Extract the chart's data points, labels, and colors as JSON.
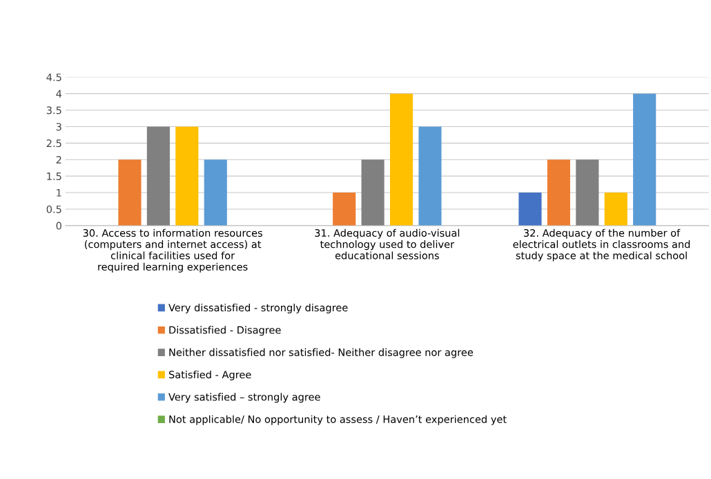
{
  "chart_data": {
    "type": "bar",
    "categories": [
      "30. Access to information resources (computers and internet access) at clinical facilities used for required learning experiences",
      "31. Adequacy of audio-visual technology used to deliver educational sessions",
      "32. Adequacy of the number of electrical outlets in classrooms and study space at the medical school"
    ],
    "series": [
      {
        "name": "Very dissatisfied - strongly disagree",
        "color": "#4472c4",
        "values": [
          0,
          0,
          1
        ]
      },
      {
        "name": "Dissatisfied - Disagree",
        "color": "#ed7d31",
        "values": [
          2,
          1,
          2
        ]
      },
      {
        "name": "Neither dissatisfied nor satisfied- Neither disagree nor agree",
        "color": "#808080",
        "values": [
          3,
          2,
          2
        ]
      },
      {
        "name": "Satisfied - Agree",
        "color": "#ffc000",
        "values": [
          3,
          4,
          1
        ]
      },
      {
        "name": "Very satisfied – strongly agree",
        "color": "#5b9bd5",
        "values": [
          2,
          3,
          4
        ]
      },
      {
        "name": "Not applicable/ No opportunity to assess / Haven’t experienced yet",
        "color": "#70ad47",
        "values": [
          0,
          0,
          0
        ]
      }
    ],
    "ylim": [
      0,
      4.5
    ],
    "yticks": [
      0,
      0.5,
      1,
      1.5,
      2,
      2.5,
      3,
      3.5,
      4,
      4.5
    ],
    "grid": "y",
    "legend": "bottom"
  }
}
